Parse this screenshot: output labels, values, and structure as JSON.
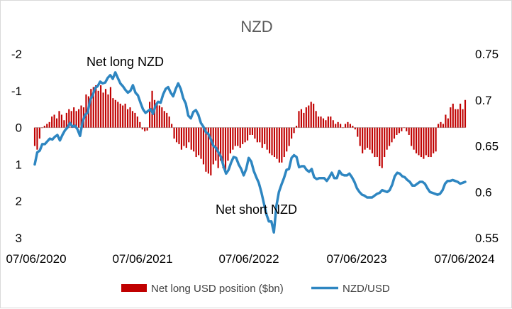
{
  "chart_data": {
    "type": "bar+line",
    "title": "NZD",
    "x_tick_labels": [
      "07/06/2020",
      "07/06/2021",
      "07/06/2022",
      "07/06/2023",
      "07/06/2024"
    ],
    "left_axis": {
      "ticks": [
        "-2",
        "-1",
        "0",
        "1",
        "2",
        "3"
      ],
      "range": [
        -2,
        3
      ],
      "inverted": true
    },
    "right_axis": {
      "ticks": [
        "0.75",
        "0.7",
        "0.65",
        "0.6",
        "0.55"
      ],
      "range": [
        0.55,
        0.75
      ]
    },
    "annotations": {
      "upper": "Net long NZD",
      "lower": "Net short NZD"
    },
    "legend": {
      "bar_label": "Net long USD position ($bn)",
      "line_label": "NZD/USD",
      "position": "bottom"
    },
    "colors": {
      "bar": "#c00000",
      "line": "#2e86c1"
    },
    "series": [
      {
        "name": "Net long USD position ($bn)",
        "kind": "bar",
        "values": [
          0.5,
          0.6,
          0.3,
          0.0,
          -0.05,
          -0.1,
          -0.15,
          -0.3,
          -0.35,
          -0.25,
          -0.45,
          -0.35,
          -0.2,
          -0.4,
          -0.5,
          -0.45,
          -0.55,
          -0.45,
          -0.5,
          -0.6,
          -0.55,
          -0.9,
          -0.85,
          -1.05,
          -1.1,
          -1.15,
          -1.0,
          -1.15,
          -0.95,
          -1.05,
          -0.9,
          -1.1,
          -0.8,
          -0.75,
          -0.7,
          -0.65,
          -0.6,
          -0.65,
          -0.5,
          -0.55,
          -0.45,
          -0.4,
          -0.3,
          -0.15,
          0.05,
          0.1,
          0.08,
          -0.7,
          -1.0,
          -0.75,
          -0.65,
          -0.6,
          -0.55,
          -0.45,
          -0.4,
          -0.3,
          -0.1,
          0.3,
          0.4,
          0.45,
          0.6,
          0.5,
          0.55,
          0.4,
          0.6,
          0.65,
          0.8,
          0.75,
          0.85,
          1.0,
          1.2,
          1.25,
          1.3,
          1.0,
          0.9,
          1.1,
          0.9,
          1.1,
          1.15,
          0.9,
          0.7,
          0.6,
          0.5,
          0.5,
          0.55,
          0.45,
          0.4,
          0.35,
          0.2,
          0.2,
          0.3,
          0.4,
          0.4,
          0.55,
          0.45,
          0.6,
          0.7,
          0.75,
          0.8,
          0.85,
          0.95,
          0.95,
          0.8,
          0.65,
          0.5,
          0.3,
          0.15,
          -0.05,
          -0.45,
          -0.5,
          -0.4,
          -0.55,
          -0.6,
          -0.7,
          -0.65,
          -0.45,
          -0.3,
          -0.3,
          -0.25,
          -0.2,
          -0.3,
          -0.3,
          -0.2,
          -0.1,
          -0.15,
          -0.1,
          0.0,
          -0.1,
          -0.15,
          -0.1,
          -0.05,
          0.05,
          0.25,
          0.5,
          0.7,
          0.6,
          0.55,
          0.6,
          0.7,
          0.8,
          0.8,
          1.05,
          1.1,
          0.8,
          0.6,
          0.5,
          0.4,
          0.3,
          0.2,
          0.15,
          0.1,
          0.0,
          0.1,
          0.2,
          0.5,
          0.6,
          0.7,
          0.75,
          0.8,
          0.85,
          0.75,
          0.8,
          0.8,
          0.7,
          0.65,
          -0.1,
          -0.15,
          -0.1,
          -0.35,
          -0.25,
          -0.55,
          -0.65,
          -0.5,
          -0.5,
          -0.65,
          -0.5,
          -0.75
        ]
      },
      {
        "name": "NZD/USD",
        "kind": "line",
        "values": [
          0.63,
          0.643,
          0.645,
          0.652,
          0.652,
          0.655,
          0.658,
          0.657,
          0.66,
          0.662,
          0.656,
          0.662,
          0.667,
          0.67,
          0.675,
          0.671,
          0.672,
          0.668,
          0.661,
          0.676,
          0.684,
          0.686,
          0.7,
          0.705,
          0.713,
          0.715,
          0.72,
          0.718,
          0.719,
          0.724,
          0.727,
          0.723,
          0.73,
          0.724,
          0.718,
          0.715,
          0.711,
          0.708,
          0.71,
          0.716,
          0.708,
          0.705,
          0.697,
          0.69,
          0.686,
          0.688,
          0.69,
          0.685,
          0.694,
          0.698,
          0.697,
          0.706,
          0.712,
          0.714,
          0.708,
          0.704,
          0.712,
          0.718,
          0.712,
          0.702,
          0.696,
          0.683,
          0.68,
          0.687,
          0.689,
          0.684,
          0.675,
          0.671,
          0.665,
          0.663,
          0.657,
          0.65,
          0.648,
          0.643,
          0.638,
          0.628,
          0.62,
          0.624,
          0.632,
          0.638,
          0.637,
          0.63,
          0.625,
          0.618,
          0.625,
          0.637,
          0.633,
          0.623,
          0.616,
          0.61,
          0.6,
          0.588,
          0.576,
          0.568,
          0.568,
          0.556,
          0.585,
          0.6,
          0.608,
          0.615,
          0.624,
          0.625,
          0.637,
          0.64,
          0.638,
          0.627,
          0.628,
          0.628,
          0.624,
          0.622,
          0.625,
          0.616,
          0.614,
          0.615,
          0.615,
          0.615,
          0.612,
          0.616,
          0.621,
          0.615,
          0.615,
          0.623,
          0.619,
          0.618,
          0.618,
          0.62,
          0.616,
          0.611,
          0.604,
          0.6,
          0.597,
          0.596,
          0.594,
          0.594,
          0.594,
          0.596,
          0.598,
          0.599,
          0.602,
          0.601,
          0.6,
          0.602,
          0.608,
          0.617,
          0.621,
          0.62,
          0.617,
          0.616,
          0.613,
          0.611,
          0.607,
          0.607,
          0.609,
          0.611,
          0.611,
          0.609,
          0.604,
          0.6,
          0.599,
          0.598,
          0.597,
          0.598,
          0.602,
          0.609,
          0.612,
          0.612,
          0.613,
          0.612,
          0.611,
          0.609,
          0.61,
          0.611
        ]
      }
    ]
  }
}
